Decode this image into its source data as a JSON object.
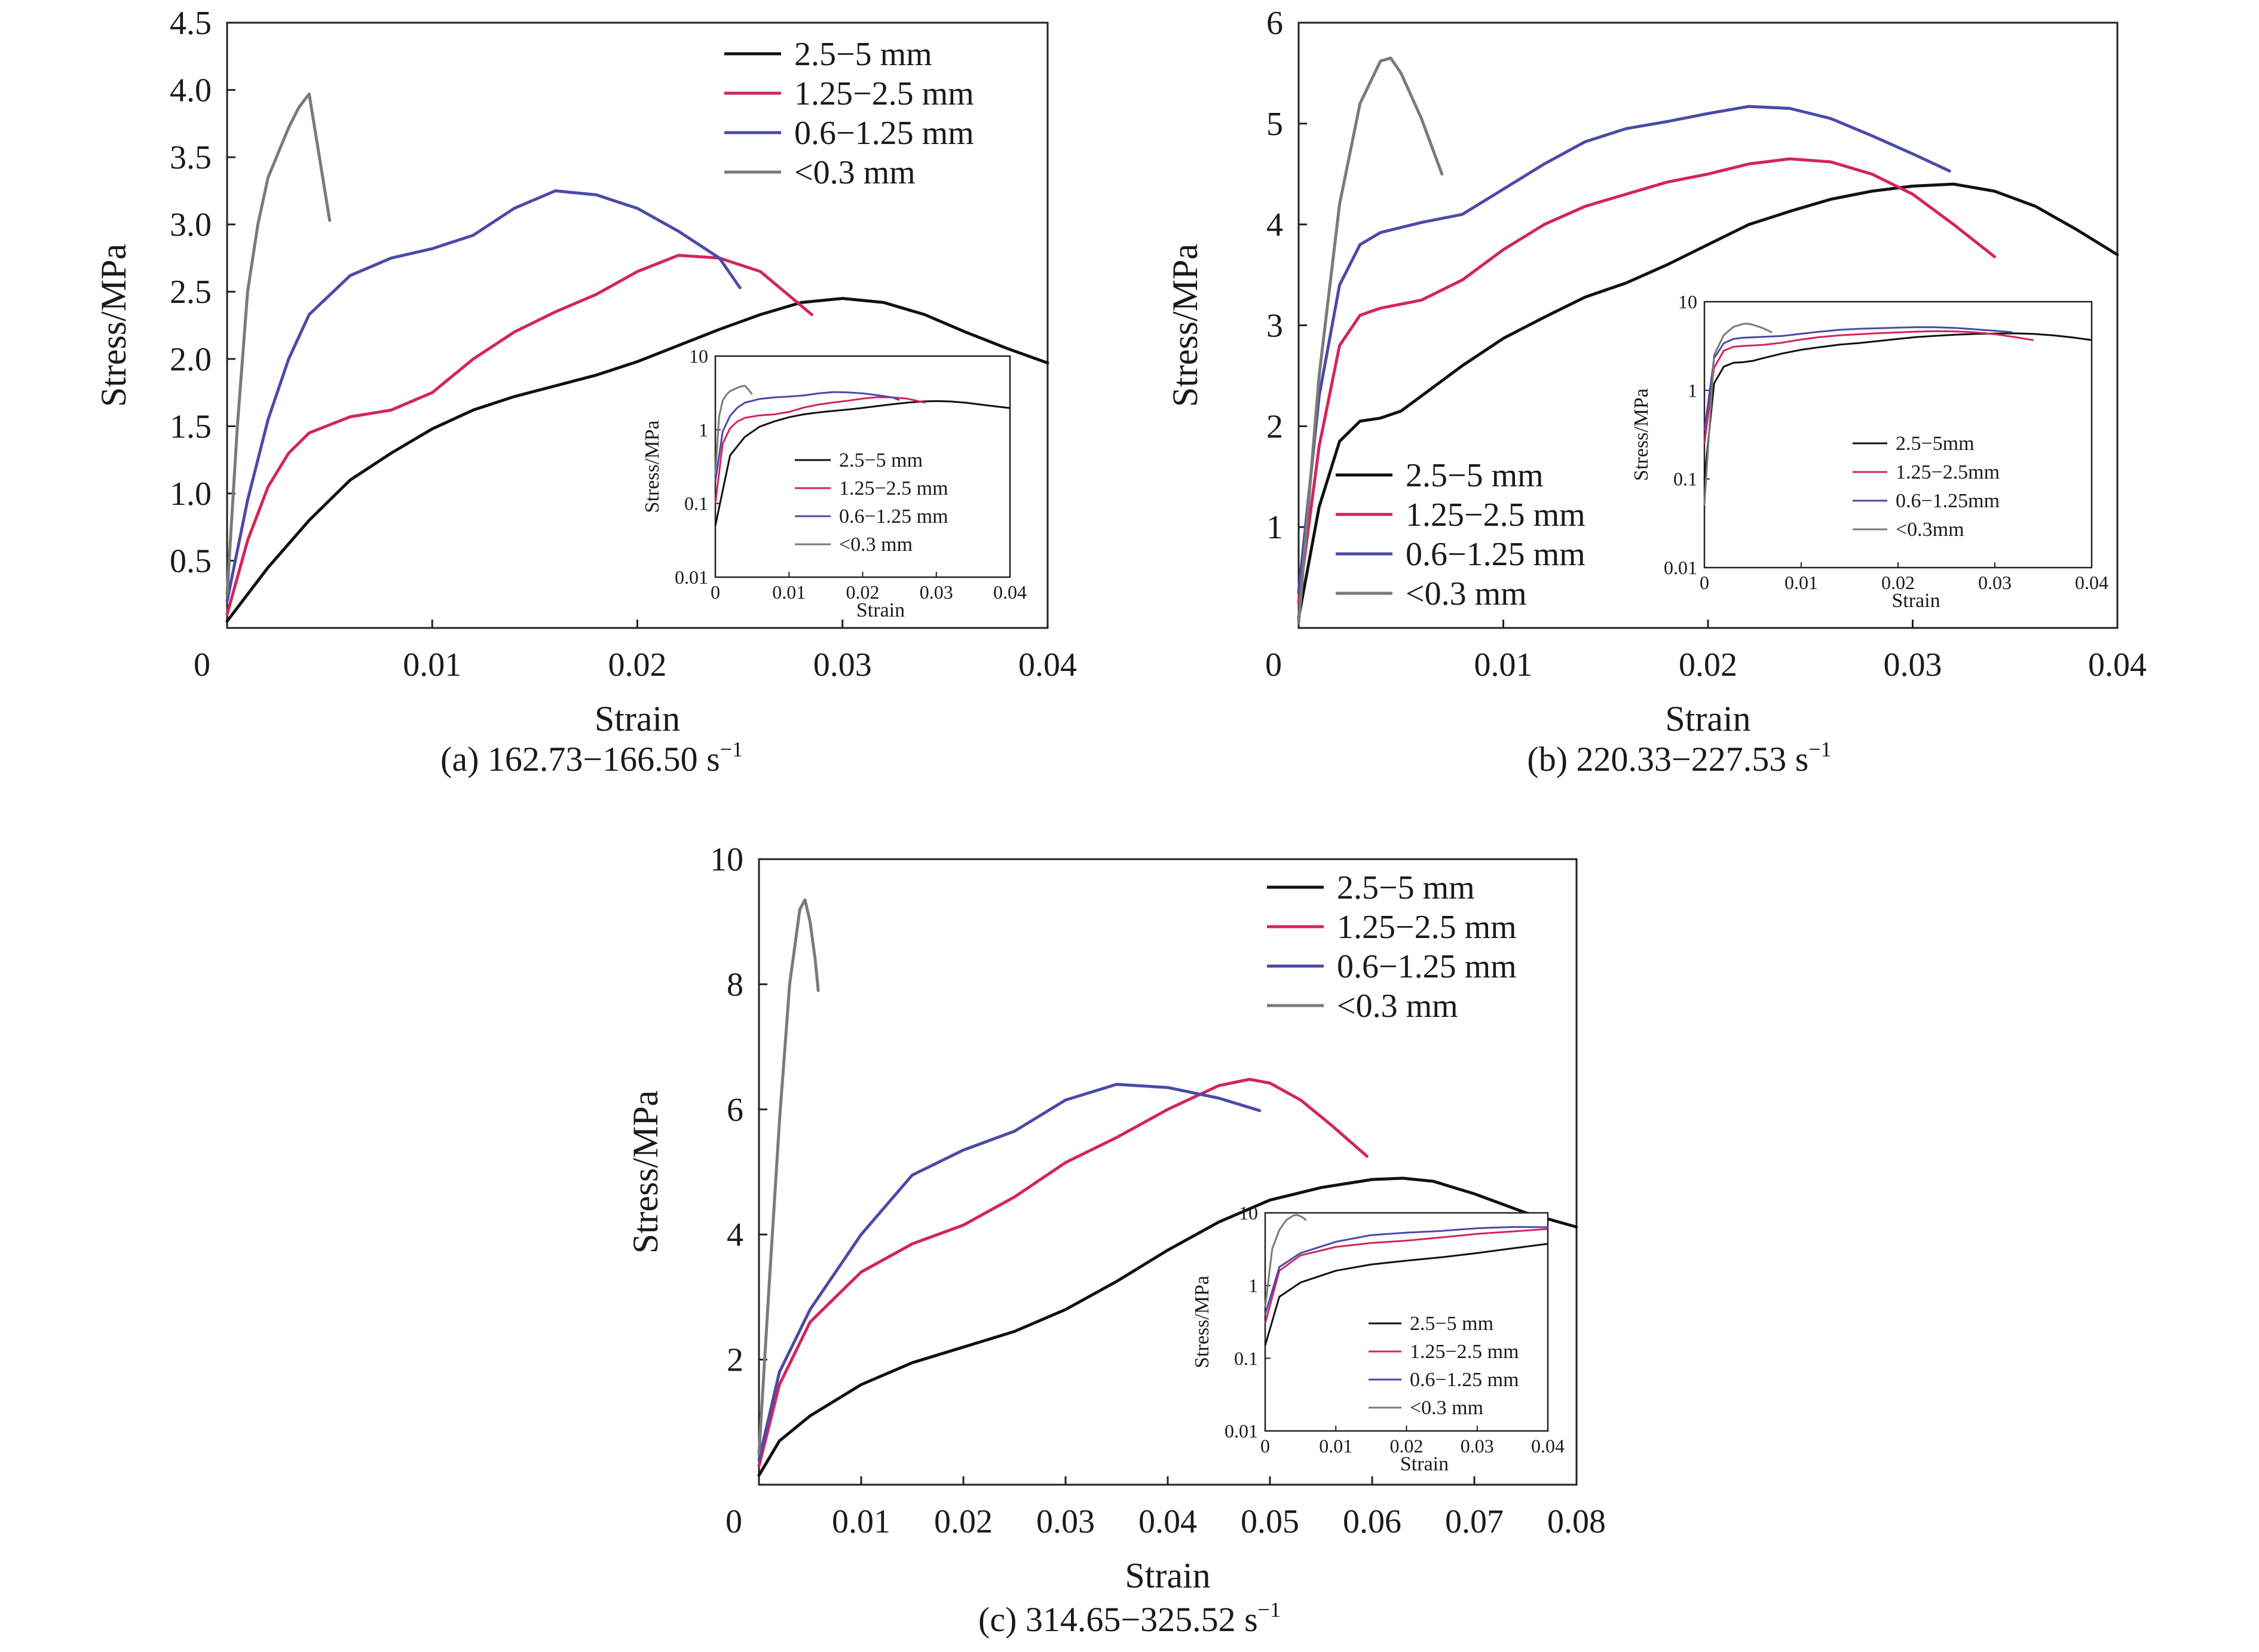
{
  "chart_data": [
    {
      "type": "line",
      "caption": "(a) 162.73−166.50 s",
      "caption_sup": "−1",
      "xlabel": "Strain",
      "ylabel": "Stress/MPa",
      "xlim": [
        0,
        0.04
      ],
      "ylim": [
        0,
        4.5
      ],
      "xticks": [
        "0",
        "0.01",
        "0.02",
        "0.03",
        "0.04"
      ],
      "yticks": [
        "0.5",
        "1.0",
        "1.5",
        "2.0",
        "2.5",
        "3.0",
        "3.5",
        "4.0",
        "4.5"
      ],
      "legend_position": "top-right",
      "series": [
        {
          "name": "2.5−5 mm",
          "color": "#111111",
          "points": [
            [
              0,
              0.05
            ],
            [
              0.002,
              0.45
            ],
            [
              0.004,
              0.8
            ],
            [
              0.006,
              1.1
            ],
            [
              0.008,
              1.3
            ],
            [
              0.01,
              1.48
            ],
            [
              0.012,
              1.62
            ],
            [
              0.014,
              1.72
            ],
            [
              0.016,
              1.8
            ],
            [
              0.018,
              1.88
            ],
            [
              0.02,
              1.98
            ],
            [
              0.022,
              2.1
            ],
            [
              0.024,
              2.22
            ],
            [
              0.026,
              2.33
            ],
            [
              0.028,
              2.42
            ],
            [
              0.03,
              2.45
            ],
            [
              0.032,
              2.42
            ],
            [
              0.034,
              2.33
            ],
            [
              0.036,
              2.2
            ],
            [
              0.038,
              2.08
            ],
            [
              0.04,
              1.97
            ]
          ]
        },
        {
          "name": "1.25−2.5 mm",
          "color": "#d4245a",
          "points": [
            [
              0,
              0.1
            ],
            [
              0.001,
              0.65
            ],
            [
              0.002,
              1.05
            ],
            [
              0.003,
              1.3
            ],
            [
              0.004,
              1.45
            ],
            [
              0.006,
              1.57
            ],
            [
              0.008,
              1.62
            ],
            [
              0.01,
              1.75
            ],
            [
              0.012,
              2.0
            ],
            [
              0.014,
              2.2
            ],
            [
              0.016,
              2.35
            ],
            [
              0.018,
              2.48
            ],
            [
              0.02,
              2.65
            ],
            [
              0.022,
              2.77
            ],
            [
              0.024,
              2.75
            ],
            [
              0.026,
              2.65
            ],
            [
              0.0285,
              2.33
            ]
          ]
        },
        {
          "name": "0.6−1.25 mm",
          "color": "#4a4aa8",
          "points": [
            [
              0,
              0.2
            ],
            [
              0.001,
              0.95
            ],
            [
              0.002,
              1.55
            ],
            [
              0.003,
              2.0
            ],
            [
              0.004,
              2.33
            ],
            [
              0.006,
              2.62
            ],
            [
              0.008,
              2.75
            ],
            [
              0.01,
              2.82
            ],
            [
              0.012,
              2.92
            ],
            [
              0.014,
              3.12
            ],
            [
              0.016,
              3.25
            ],
            [
              0.018,
              3.22
            ],
            [
              0.02,
              3.12
            ],
            [
              0.022,
              2.95
            ],
            [
              0.024,
              2.75
            ],
            [
              0.025,
              2.53
            ]
          ]
        },
        {
          "name": "<0.3 mm",
          "color": "#7a7a7a",
          "points": [
            [
              0,
              0.25
            ],
            [
              0.0005,
              1.5
            ],
            [
              0.001,
              2.5
            ],
            [
              0.0015,
              3.0
            ],
            [
              0.002,
              3.35
            ],
            [
              0.003,
              3.72
            ],
            [
              0.0035,
              3.87
            ],
            [
              0.004,
              3.97
            ],
            [
              0.0045,
              3.5
            ],
            [
              0.005,
              3.03
            ]
          ]
        }
      ],
      "inset": {
        "xlabel": "Strain",
        "ylabel": "Stress/MPa",
        "xlim": [
          0,
          0.04
        ],
        "ylim": [
          0.01,
          10
        ],
        "scale": "log",
        "xticks": [
          "0",
          "0.01",
          "0.02",
          "0.03",
          "0.04"
        ],
        "yticks": [
          "0.01",
          "0.1",
          "1",
          "10"
        ],
        "legend": [
          "2.5−5 mm",
          "1.25−2.5 mm",
          "0.6−1.25 mm",
          "<0.3 mm"
        ]
      }
    },
    {
      "type": "line",
      "caption": "(b) 220.33−227.53 s",
      "caption_sup": "−1",
      "xlabel": "Strain",
      "ylabel": "Stress/MPa",
      "xlim": [
        0,
        0.04
      ],
      "ylim": [
        0,
        6
      ],
      "xticks": [
        "0",
        "0.01",
        "0.02",
        "0.03",
        "0.04"
      ],
      "yticks": [
        "1",
        "2",
        "3",
        "4",
        "5",
        "6"
      ],
      "legend_position": "bottom-left",
      "series": [
        {
          "name": "2.5−5 mm",
          "color": "#111111",
          "points": [
            [
              0,
              0.1
            ],
            [
              0.001,
              1.2
            ],
            [
              0.002,
              1.85
            ],
            [
              0.003,
              2.05
            ],
            [
              0.004,
              2.08
            ],
            [
              0.005,
              2.15
            ],
            [
              0.006,
              2.3
            ],
            [
              0.008,
              2.6
            ],
            [
              0.01,
              2.87
            ],
            [
              0.012,
              3.08
            ],
            [
              0.014,
              3.28
            ],
            [
              0.016,
              3.42
            ],
            [
              0.018,
              3.6
            ],
            [
              0.02,
              3.8
            ],
            [
              0.022,
              4.0
            ],
            [
              0.024,
              4.13
            ],
            [
              0.026,
              4.25
            ],
            [
              0.028,
              4.33
            ],
            [
              0.03,
              4.38
            ],
            [
              0.032,
              4.4
            ],
            [
              0.034,
              4.33
            ],
            [
              0.036,
              4.18
            ],
            [
              0.038,
              3.95
            ],
            [
              0.04,
              3.7
            ]
          ]
        },
        {
          "name": "1.25−2.5 mm",
          "color": "#d4245a",
          "points": [
            [
              0,
              0.25
            ],
            [
              0.001,
              1.8
            ],
            [
              0.002,
              2.8
            ],
            [
              0.003,
              3.1
            ],
            [
              0.004,
              3.17
            ],
            [
              0.006,
              3.25
            ],
            [
              0.008,
              3.45
            ],
            [
              0.01,
              3.75
            ],
            [
              0.012,
              4.0
            ],
            [
              0.014,
              4.18
            ],
            [
              0.016,
              4.3
            ],
            [
              0.018,
              4.42
            ],
            [
              0.02,
              4.5
            ],
            [
              0.022,
              4.6
            ],
            [
              0.024,
              4.65
            ],
            [
              0.026,
              4.62
            ],
            [
              0.028,
              4.5
            ],
            [
              0.03,
              4.3
            ],
            [
              0.032,
              4.0
            ],
            [
              0.034,
              3.68
            ]
          ]
        },
        {
          "name": "0.6−1.25 mm",
          "color": "#4a4aa8",
          "points": [
            [
              0,
              0.35
            ],
            [
              0.001,
              2.3
            ],
            [
              0.002,
              3.4
            ],
            [
              0.003,
              3.8
            ],
            [
              0.004,
              3.92
            ],
            [
              0.006,
              4.02
            ],
            [
              0.008,
              4.1
            ],
            [
              0.01,
              4.35
            ],
            [
              0.012,
              4.6
            ],
            [
              0.014,
              4.82
            ],
            [
              0.016,
              4.95
            ],
            [
              0.018,
              5.02
            ],
            [
              0.02,
              5.1
            ],
            [
              0.022,
              5.17
            ],
            [
              0.024,
              5.15
            ],
            [
              0.026,
              5.05
            ],
            [
              0.028,
              4.88
            ],
            [
              0.03,
              4.7
            ],
            [
              0.0318,
              4.53
            ]
          ]
        },
        {
          "name": "<0.3 mm",
          "color": "#7a7a7a",
          "points": [
            [
              0,
              0.05
            ],
            [
              0.001,
              2.5
            ],
            [
              0.002,
              4.2
            ],
            [
              0.003,
              5.2
            ],
            [
              0.004,
              5.62
            ],
            [
              0.0045,
              5.65
            ],
            [
              0.005,
              5.5
            ],
            [
              0.006,
              5.05
            ],
            [
              0.007,
              4.5
            ]
          ]
        }
      ],
      "inset": {
        "xlabel": "Strain",
        "ylabel": "Stress/MPa",
        "xlim": [
          0,
          0.04
        ],
        "ylim": [
          0.01,
          10
        ],
        "scale": "log",
        "xticks": [
          "0",
          "0.01",
          "0.02",
          "0.03",
          "0.04"
        ],
        "yticks": [
          "0.01",
          "0.1",
          "1",
          "10"
        ],
        "legend": [
          "2.5−5mm",
          "1.25−2.5mm",
          "0.6−1.25mm",
          "<0.3mm"
        ]
      }
    },
    {
      "type": "line",
      "caption": "(c) 314.65−325.52 s",
      "caption_sup": "−1",
      "xlabel": "Strain",
      "ylabel": "Stress/MPa",
      "xlim": [
        0,
        0.08
      ],
      "ylim": [
        0,
        10
      ],
      "xticks": [
        "0",
        "0.01",
        "0.02",
        "0.03",
        "0.04",
        "0.05",
        "0.06",
        "0.07",
        "0.08"
      ],
      "yticks": [
        "2",
        "4",
        "6",
        "8",
        "10"
      ],
      "legend_position": "top-right",
      "series": [
        {
          "name": "2.5−5 mm",
          "color": "#111111",
          "points": [
            [
              0,
              0.15
            ],
            [
              0.002,
              0.7
            ],
            [
              0.005,
              1.1
            ],
            [
              0.01,
              1.6
            ],
            [
              0.015,
              1.95
            ],
            [
              0.02,
              2.2
            ],
            [
              0.025,
              2.45
            ],
            [
              0.03,
              2.8
            ],
            [
              0.035,
              3.25
            ],
            [
              0.04,
              3.75
            ],
            [
              0.045,
              4.2
            ],
            [
              0.05,
              4.55
            ],
            [
              0.055,
              4.75
            ],
            [
              0.06,
              4.88
            ],
            [
              0.063,
              4.9
            ],
            [
              0.066,
              4.85
            ],
            [
              0.07,
              4.65
            ],
            [
              0.075,
              4.35
            ],
            [
              0.08,
              4.12
            ]
          ]
        },
        {
          "name": "1.25−2.5 mm",
          "color": "#d4245a",
          "points": [
            [
              0,
              0.3
            ],
            [
              0.002,
              1.6
            ],
            [
              0.005,
              2.6
            ],
            [
              0.01,
              3.4
            ],
            [
              0.015,
              3.85
            ],
            [
              0.02,
              4.15
            ],
            [
              0.025,
              4.6
            ],
            [
              0.03,
              5.15
            ],
            [
              0.035,
              5.55
            ],
            [
              0.04,
              6.0
            ],
            [
              0.045,
              6.38
            ],
            [
              0.048,
              6.48
            ],
            [
              0.05,
              6.42
            ],
            [
              0.053,
              6.15
            ],
            [
              0.056,
              5.75
            ],
            [
              0.0595,
              5.25
            ]
          ]
        },
        {
          "name": "0.6−1.25 mm",
          "color": "#4a4aa8",
          "points": [
            [
              0,
              0.4
            ],
            [
              0.002,
              1.8
            ],
            [
              0.005,
              2.8
            ],
            [
              0.01,
              4.0
            ],
            [
              0.015,
              4.95
            ],
            [
              0.02,
              5.35
            ],
            [
              0.025,
              5.65
            ],
            [
              0.03,
              6.15
            ],
            [
              0.035,
              6.4
            ],
            [
              0.04,
              6.35
            ],
            [
              0.045,
              6.18
            ],
            [
              0.049,
              5.98
            ]
          ]
        },
        {
          "name": "<0.3 mm",
          "color": "#7a7a7a",
          "points": [
            [
              0,
              0.5
            ],
            [
              0.001,
              3.2
            ],
            [
              0.002,
              5.8
            ],
            [
              0.003,
              8.0
            ],
            [
              0.004,
              9.2
            ],
            [
              0.0045,
              9.35
            ],
            [
              0.005,
              9.0
            ],
            [
              0.0055,
              8.4
            ],
            [
              0.0058,
              7.9
            ]
          ]
        }
      ],
      "inset": {
        "xlabel": "Strain",
        "ylabel": "Stress/MPa",
        "xlim": [
          0,
          0.04
        ],
        "ylim": [
          0.01,
          10
        ],
        "scale": "log",
        "xticks": [
          "0",
          "0.01",
          "0.02",
          "0.03",
          "0.04"
        ],
        "yticks": [
          "0.01",
          "0.1",
          "1",
          "10"
        ],
        "legend": [
          "2.5−5 mm",
          "1.25−2.5 mm",
          "0.6−1.25 mm",
          "<0.3 mm"
        ]
      }
    }
  ]
}
